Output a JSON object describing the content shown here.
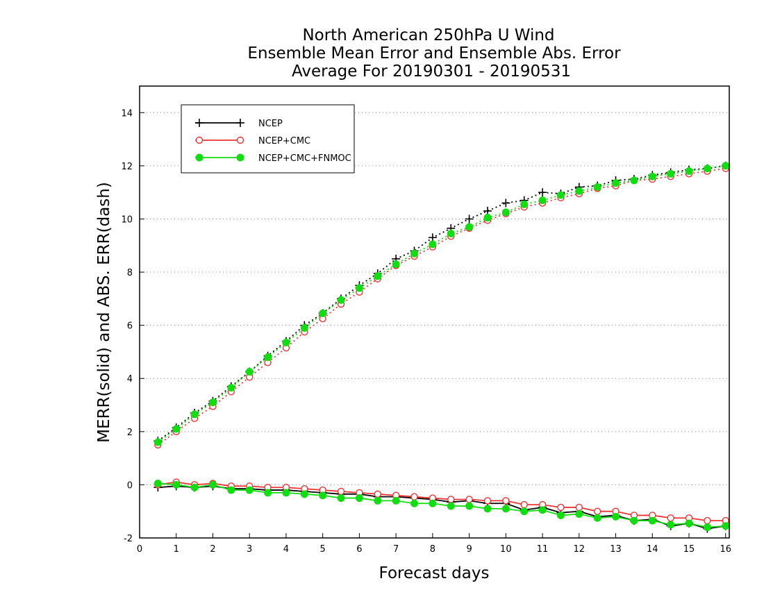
{
  "chart_data": {
    "type": "line",
    "title_lines": [
      "North American 250hPa U Wind",
      "Ensemble Mean Error and Ensemble Abs. Error",
      "Average For 20190301 - 20190531"
    ],
    "xlabel": "Forecast days",
    "ylabel": "MERR(solid) and ABS. ERR(dash)",
    "xlim": [
      0,
      16.1
    ],
    "ylim": [
      -2,
      15
    ],
    "x_ticks": [
      "0",
      "1",
      "2",
      "3",
      "4",
      "5",
      "6",
      "7",
      "8",
      "9",
      "10",
      "11",
      "12",
      "13",
      "14",
      "15",
      "16"
    ],
    "y_ticks": [
      "-2",
      "0",
      "2",
      "4",
      "6",
      "8",
      "10",
      "12",
      "14"
    ],
    "grid": "horizontal dotted",
    "legend_position": "top-left",
    "x": [
      0.5,
      1,
      1.5,
      2,
      2.5,
      3,
      3.5,
      4,
      4.5,
      5,
      5.5,
      6,
      6.5,
      7,
      7.5,
      8,
      8.5,
      9,
      9.5,
      10,
      10.5,
      11,
      11.5,
      12,
      12.5,
      13,
      13.5,
      14,
      14.5,
      15,
      15.5,
      16
    ],
    "series": [
      {
        "name": "NCEP",
        "color": "#000000",
        "marker": "plus",
        "mean_error": [
          -0.1,
          -0.05,
          -0.1,
          -0.05,
          -0.15,
          -0.15,
          -0.2,
          -0.2,
          -0.25,
          -0.3,
          -0.35,
          -0.35,
          -0.45,
          -0.45,
          -0.5,
          -0.55,
          -0.65,
          -0.6,
          -0.7,
          -0.7,
          -0.95,
          -0.85,
          -1.05,
          -1.0,
          -1.2,
          -1.15,
          -1.35,
          -1.3,
          -1.55,
          -1.45,
          -1.65,
          -1.55
        ],
        "abs_error": [
          1.65,
          2.15,
          2.7,
          3.15,
          3.7,
          4.25,
          4.85,
          5.4,
          6.0,
          6.45,
          7.0,
          7.5,
          7.95,
          8.5,
          8.8,
          9.3,
          9.65,
          10.0,
          10.3,
          10.6,
          10.7,
          11.0,
          10.95,
          11.2,
          11.25,
          11.45,
          11.5,
          11.65,
          11.75,
          11.85,
          11.9,
          12.0
        ]
      },
      {
        "name": "NCEP+CMC",
        "color": "#ee3333",
        "marker": "open-circle",
        "mean_error": [
          0.0,
          0.1,
          0.0,
          0.05,
          -0.05,
          -0.05,
          -0.1,
          -0.1,
          -0.15,
          -0.2,
          -0.25,
          -0.3,
          -0.35,
          -0.4,
          -0.45,
          -0.5,
          -0.55,
          -0.55,
          -0.6,
          -0.6,
          -0.75,
          -0.75,
          -0.85,
          -0.85,
          -1.0,
          -1.0,
          -1.15,
          -1.15,
          -1.25,
          -1.25,
          -1.35,
          -1.35
        ],
        "abs_error": [
          1.5,
          2.0,
          2.5,
          2.95,
          3.5,
          4.05,
          4.6,
          5.15,
          5.75,
          6.25,
          6.8,
          7.25,
          7.75,
          8.25,
          8.6,
          8.95,
          9.35,
          9.65,
          9.95,
          10.2,
          10.45,
          10.6,
          10.8,
          10.95,
          11.15,
          11.25,
          11.45,
          11.5,
          11.6,
          11.7,
          11.8,
          11.9
        ]
      },
      {
        "name": "NCEP+CMC+FNMOC",
        "color": "#11dd11",
        "marker": "filled-circle",
        "mean_error": [
          0.05,
          0.0,
          -0.1,
          0.0,
          -0.2,
          -0.2,
          -0.3,
          -0.3,
          -0.35,
          -0.4,
          -0.5,
          -0.5,
          -0.6,
          -0.6,
          -0.7,
          -0.7,
          -0.8,
          -0.8,
          -0.9,
          -0.9,
          -1.0,
          -0.95,
          -1.15,
          -1.1,
          -1.25,
          -1.2,
          -1.35,
          -1.35,
          -1.5,
          -1.45,
          -1.6,
          -1.55
        ],
        "abs_error": [
          1.6,
          2.1,
          2.65,
          3.1,
          3.65,
          4.25,
          4.8,
          5.35,
          5.9,
          6.45,
          6.95,
          7.4,
          7.85,
          8.3,
          8.7,
          9.05,
          9.45,
          9.7,
          10.05,
          10.25,
          10.55,
          10.7,
          10.9,
          11.05,
          11.2,
          11.35,
          11.45,
          11.6,
          11.7,
          11.8,
          11.9,
          12.0
        ]
      }
    ]
  }
}
